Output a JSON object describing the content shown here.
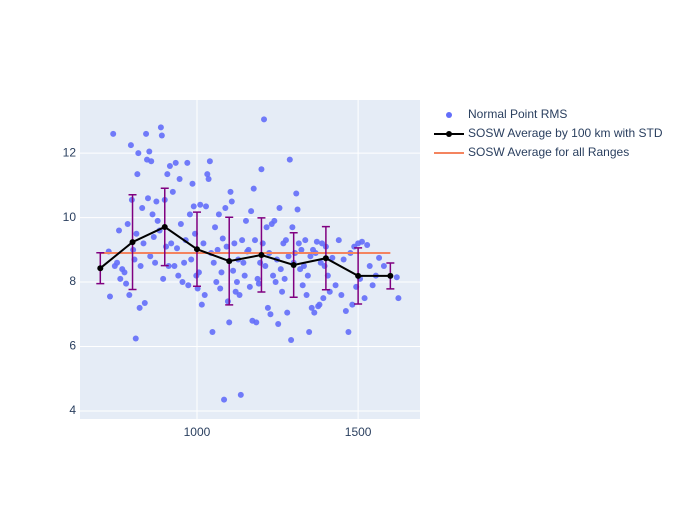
{
  "chart_data": {
    "type": "scatter",
    "xlim": [
      637,
      1692
    ],
    "ylim": [
      3.75,
      13.65
    ],
    "xticks": [
      1000,
      1500
    ],
    "yticks": [
      4,
      6,
      8,
      10,
      12
    ],
    "grid": true,
    "legend": "outside-right",
    "series": [
      {
        "name": "Normal Point RMS",
        "color": "#636efa",
        "mode": "markers",
        "x": [
          726,
          730,
          740,
          745,
          752,
          758,
          762,
          768,
          775,
          780,
          785,
          790,
          795,
          798,
          802,
          806,
          810,
          812,
          815,
          818,
          822,
          825,
          830,
          834,
          838,
          842,
          845,
          848,
          852,
          855,
          858,
          862,
          866,
          870,
          874,
          878,
          884,
          888,
          891,
          895,
          900,
          904,
          908,
          912,
          916,
          920,
          925,
          930,
          934,
          938,
          942,
          946,
          950,
          955,
          960,
          965,
          970,
          973,
          978,
          982,
          986,
          990,
          994,
          998,
          1002,
          1006,
          1010,
          1015,
          1020,
          1024,
          1028,
          1032,
          1036,
          1040,
          1044,
          1048,
          1052,
          1056,
          1060,
          1064,
          1068,
          1072,
          1076,
          1080,
          1084,
          1088,
          1092,
          1096,
          1100,
          1104,
          1108,
          1112,
          1116,
          1120,
          1124,
          1128,
          1132,
          1136,
          1140,
          1144,
          1148,
          1152,
          1156,
          1160,
          1164,
          1168,
          1172,
          1176,
          1180,
          1184,
          1188,
          1192,
          1196,
          1200,
          1204,
          1208,
          1212,
          1216,
          1220,
          1224,
          1228,
          1232,
          1236,
          1240,
          1244,
          1248,
          1252,
          1256,
          1260,
          1264,
          1268,
          1272,
          1276,
          1280,
          1284,
          1288,
          1292,
          1296,
          1300,
          1304,
          1308,
          1312,
          1316,
          1320,
          1324,
          1328,
          1332,
          1336,
          1340,
          1344,
          1348,
          1352,
          1356,
          1360,
          1364,
          1368,
          1372,
          1376,
          1380,
          1384,
          1388,
          1392,
          1396,
          1400,
          1406,
          1412,
          1420,
          1430,
          1440,
          1448,
          1455,
          1462,
          1470,
          1476,
          1482,
          1488,
          1494,
          1500,
          1506,
          1512,
          1520,
          1528,
          1536,
          1545,
          1555,
          1565,
          1580,
          1620,
          1625
        ],
        "values": [
          8.95,
          7.55,
          12.6,
          8.5,
          8.6,
          9.6,
          8.1,
          8.4,
          8.3,
          7.95,
          9.8,
          7.6,
          12.25,
          10.55,
          9.0,
          8.7,
          6.25,
          9.5,
          11.35,
          12.0,
          7.2,
          8.5,
          10.3,
          9.2,
          7.35,
          12.6,
          11.8,
          10.6,
          12.05,
          8.8,
          11.75,
          10.1,
          9.4,
          8.6,
          10.5,
          9.9,
          9.6,
          12.8,
          12.55,
          8.1,
          10.55,
          9.1,
          11.35,
          8.5,
          11.6,
          9.2,
          10.8,
          8.5,
          11.7,
          9.05,
          8.2,
          11.2,
          9.8,
          8.0,
          8.6,
          9.3,
          11.7,
          7.9,
          10.1,
          8.7,
          11.05,
          10.35,
          9.5,
          8.2,
          7.8,
          8.3,
          10.4,
          7.3,
          9.2,
          7.6,
          10.35,
          11.35,
          11.2,
          11.75,
          8.9,
          6.45,
          8.6,
          9.7,
          8.0,
          9.0,
          10.1,
          7.8,
          8.3,
          9.35,
          4.35,
          10.3,
          9.1,
          7.4,
          6.75,
          10.8,
          10.5,
          8.35,
          9.2,
          7.7,
          8.0,
          8.7,
          7.6,
          4.5,
          9.3,
          8.6,
          8.2,
          9.9,
          8.95,
          9.0,
          7.85,
          10.2,
          6.8,
          10.9,
          9.3,
          6.75,
          8.1,
          7.95,
          8.6,
          11.5,
          9.2,
          13.05,
          8.5,
          9.7,
          7.2,
          8.9,
          7.0,
          9.8,
          8.2,
          9.9,
          8.0,
          8.7,
          6.7,
          10.3,
          8.4,
          7.7,
          9.2,
          8.1,
          9.3,
          7.05,
          8.8,
          11.8,
          6.2,
          9.7,
          8.6,
          8.9,
          10.75,
          10.25,
          9.2,
          8.4,
          9.0,
          7.9,
          8.5,
          9.3,
          7.6,
          8.2,
          6.45,
          8.8,
          7.2,
          9.0,
          7.05,
          8.9,
          9.25,
          7.25,
          7.3,
          8.6,
          9.2,
          7.5,
          8.5,
          9.1,
          8.2,
          7.7,
          8.75,
          7.9,
          9.3,
          7.6,
          8.7,
          7.1,
          6.45,
          8.9,
          7.3,
          9.1,
          7.85,
          9.2,
          8.1,
          9.25,
          7.5,
          9.15,
          8.5,
          7.9,
          8.2,
          8.75,
          8.5,
          8.15,
          7.5
        ]
      },
      {
        "name": "SOSW Average by 100 km with STD",
        "color": "#000000",
        "error_color": "#800080",
        "mode": "lines+markers",
        "x": [
          700,
          800,
          900,
          1000,
          1100,
          1200,
          1300,
          1400,
          1500,
          1600
        ],
        "values": [
          8.43,
          9.24,
          9.71,
          9.02,
          8.65,
          8.84,
          8.53,
          8.74,
          8.19,
          8.19
        ],
        "errors": [
          0.48,
          1.47,
          1.2,
          1.15,
          1.36,
          1.15,
          1.0,
          0.98,
          0.87,
          0.4
        ]
      },
      {
        "name": "SOSW Average for all Ranges",
        "color": "#f4845f",
        "mode": "lines",
        "x": [
          700,
          1600
        ],
        "values": [
          8.9,
          8.9
        ]
      }
    ]
  }
}
